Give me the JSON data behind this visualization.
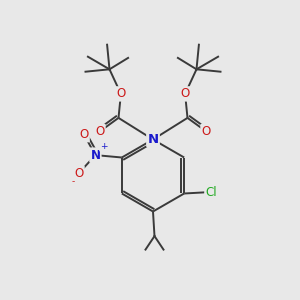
{
  "bg_color": "#e8e8e8",
  "bond_color": "#3a3a3a",
  "bond_width": 1.4,
  "atom_colors": {
    "N_amine": "#1a1acc",
    "N_nitro": "#1a1acc",
    "O": "#cc1a1a",
    "Cl": "#22aa22",
    "plus": "#1a1acc",
    "minus": "#cc1a1a"
  },
  "font_size_atom": 8.5,
  "font_size_small": 6.5
}
